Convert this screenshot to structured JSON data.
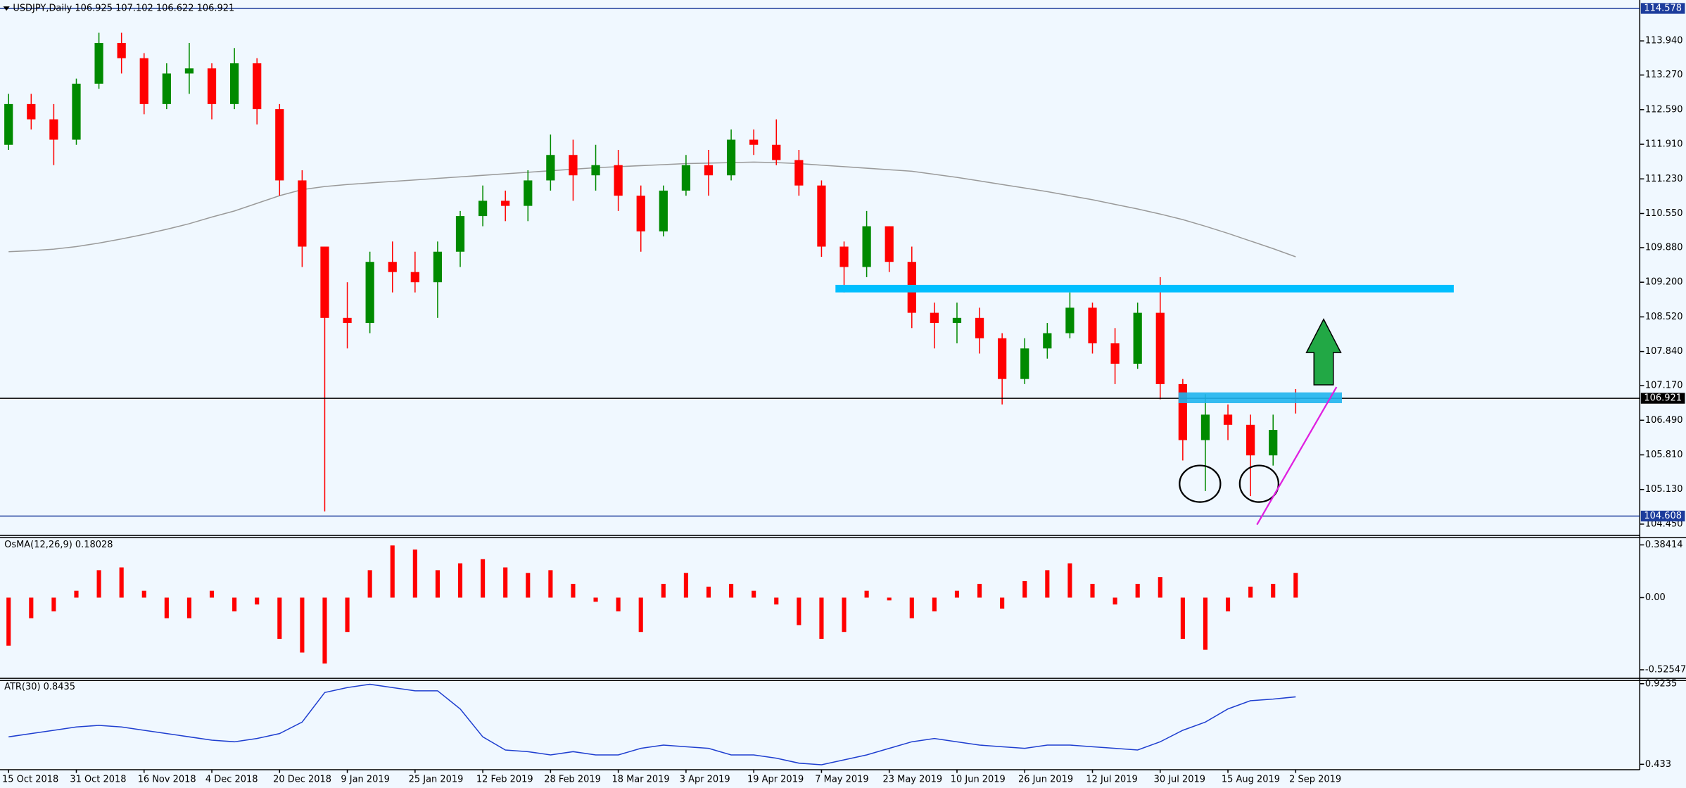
{
  "chart_data": [
    {
      "type": "candlestick",
      "title": "USDJPY,Daily  106.925 107.102 106.622 106.921",
      "categories": [
        "15 Oct 2018",
        null,
        null,
        "31 Oct 2018",
        null,
        null,
        "16 Nov 2018",
        null,
        null,
        "4 Dec 2018",
        null,
        null,
        "20 Dec 2018",
        null,
        null,
        "9 Jan 2019",
        null,
        null,
        "25 Jan 2019",
        null,
        null,
        "12 Feb 2019",
        null,
        null,
        "28 Feb 2019",
        null,
        null,
        "18 Mar 2019",
        null,
        null,
        "3 Apr 2019",
        null,
        null,
        "19 Apr 2019",
        null,
        null,
        "7 May 2019",
        null,
        null,
        "23 May 2019",
        null,
        null,
        "10 Jun 2019",
        null,
        null,
        "26 Jun 2019",
        null,
        null,
        "12 Jul 2019",
        null,
        null,
        "30 Jul 2019",
        null,
        null,
        "15 Aug 2019",
        null,
        null,
        "2 Sep 2019"
      ],
      "open": [
        111.9,
        112.7,
        112.4,
        112.0,
        113.1,
        113.9,
        113.6,
        112.7,
        113.3,
        113.4,
        112.7,
        113.5,
        112.6,
        111.2,
        109.9,
        108.5,
        108.4,
        109.6,
        109.4,
        109.2,
        109.8,
        110.5,
        110.8,
        110.7,
        111.2,
        111.7,
        111.3,
        111.5,
        110.9,
        110.2,
        111.0,
        111.5,
        111.3,
        112.0,
        111.9,
        111.6,
        111.1,
        109.9,
        109.5,
        110.3,
        109.6,
        108.6,
        108.4,
        108.5,
        108.1,
        107.3,
        107.9,
        108.2,
        108.7,
        108.0,
        107.6,
        108.6,
        107.2,
        106.1,
        106.6,
        106.4,
        105.8,
        106.925
      ],
      "high": [
        112.9,
        112.9,
        112.7,
        113.2,
        114.1,
        114.1,
        113.7,
        113.5,
        113.9,
        113.5,
        113.8,
        113.6,
        112.7,
        111.4,
        109.9,
        109.2,
        109.8,
        110.0,
        109.8,
        110.0,
        110.6,
        111.1,
        111.0,
        111.4,
        112.1,
        112.0,
        111.9,
        111.8,
        111.1,
        111.1,
        111.7,
        111.8,
        112.2,
        112.2,
        112.4,
        111.8,
        111.2,
        110.0,
        110.6,
        110.3,
        109.9,
        108.8,
        108.8,
        108.7,
        108.2,
        108.1,
        108.4,
        109.0,
        108.8,
        108.3,
        108.8,
        109.3,
        107.3,
        107.0,
        106.8,
        106.6,
        106.6,
        107.102
      ],
      "low": [
        111.8,
        112.2,
        111.5,
        111.9,
        113.0,
        113.3,
        112.5,
        112.6,
        112.9,
        112.4,
        112.6,
        112.3,
        110.9,
        109.5,
        104.7,
        107.9,
        108.2,
        109.0,
        109.0,
        108.5,
        109.5,
        110.3,
        110.4,
        110.4,
        111.0,
        110.8,
        111.0,
        110.6,
        109.8,
        110.1,
        110.9,
        110.9,
        111.2,
        111.7,
        111.5,
        110.9,
        109.7,
        109.0,
        109.3,
        109.4,
        108.3,
        107.9,
        108.0,
        107.8,
        106.8,
        107.2,
        107.7,
        108.1,
        107.8,
        107.2,
        107.5,
        106.9,
        105.7,
        105.1,
        106.1,
        105.0,
        105.6,
        106.622
      ],
      "close": [
        112.7,
        112.4,
        112.0,
        113.1,
        113.9,
        113.6,
        112.7,
        113.3,
        113.4,
        112.7,
        113.5,
        112.6,
        111.2,
        109.9,
        108.5,
        108.4,
        109.6,
        109.4,
        109.2,
        109.8,
        110.5,
        110.8,
        110.7,
        111.2,
        111.7,
        111.3,
        111.5,
        110.9,
        110.2,
        111.0,
        111.5,
        111.3,
        112.0,
        111.9,
        111.6,
        111.1,
        109.9,
        109.5,
        110.3,
        109.6,
        108.6,
        108.4,
        108.5,
        108.1,
        107.3,
        107.9,
        108.2,
        108.7,
        108.0,
        107.6,
        108.6,
        107.2,
        106.1,
        106.6,
        106.4,
        105.8,
        106.3,
        106.921
      ],
      "up_color": "#008a00",
      "down_color": "#ff0000",
      "ma_values": [
        109.8,
        109.82,
        109.85,
        109.9,
        109.97,
        110.05,
        110.14,
        110.24,
        110.35,
        110.48,
        110.6,
        110.75,
        110.9,
        111.02,
        111.08,
        111.12,
        111.15,
        111.18,
        111.21,
        111.24,
        111.27,
        111.3,
        111.33,
        111.36,
        111.39,
        111.42,
        111.45,
        111.47,
        111.49,
        111.51,
        111.53,
        111.54,
        111.55,
        111.56,
        111.55,
        111.53,
        111.5,
        111.47,
        111.44,
        111.41,
        111.38,
        111.32,
        111.26,
        111.19,
        111.12,
        111.05,
        110.98,
        110.9,
        110.82,
        110.73,
        110.64,
        110.54,
        110.43,
        110.3,
        110.16,
        110.01,
        109.86,
        109.7
      ],
      "ma_color": "#9a9a9a",
      "ylim": [
        104.25,
        114.68
      ],
      "yticks": [
        {
          "value": 113.94,
          "label": "113.940"
        },
        {
          "value": 113.27,
          "label": "113.270"
        },
        {
          "value": 112.59,
          "label": "112.590"
        },
        {
          "value": 111.91,
          "label": "111.910"
        },
        {
          "value": 111.23,
          "label": "111.230"
        },
        {
          "value": 110.55,
          "label": "110.550"
        },
        {
          "value": 109.88,
          "label": "109.880"
        },
        {
          "value": 109.2,
          "label": "109.200"
        },
        {
          "value": 108.52,
          "label": "108.520"
        },
        {
          "value": 107.84,
          "label": "107.840"
        },
        {
          "value": 107.17,
          "label": "107.170"
        },
        {
          "value": 106.49,
          "label": "106.490"
        },
        {
          "value": 105.81,
          "label": "105.810"
        },
        {
          "value": 105.13,
          "label": "105.130"
        },
        {
          "value": 104.45,
          "label": "104.450"
        }
      ],
      "price_lines": [
        {
          "value": 114.578,
          "color": "#1c3c9c"
        },
        {
          "value": 104.608,
          "color": "#1c3c9c"
        },
        {
          "value": 106.921,
          "color": "#000000"
        }
      ]
    },
    {
      "type": "bar",
      "title": "OsMA(12,26,9) 0.18028",
      "color": "#ff0000",
      "values": [
        -0.35,
        -0.15,
        -0.1,
        0.05,
        0.2,
        0.22,
        0.05,
        -0.15,
        -0.15,
        0.05,
        -0.1,
        -0.05,
        -0.3,
        -0.4,
        -0.48,
        -0.25,
        0.2,
        0.38,
        0.35,
        0.2,
        0.25,
        0.28,
        0.22,
        0.18,
        0.2,
        0.1,
        -0.03,
        -0.1,
        -0.25,
        0.1,
        0.18,
        0.08,
        0.1,
        0.05,
        -0.05,
        -0.2,
        -0.3,
        -0.25,
        0.05,
        -0.02,
        -0.15,
        -0.1,
        0.05,
        0.1,
        -0.08,
        0.12,
        0.2,
        0.25,
        0.1,
        -0.05,
        0.1,
        0.15,
        -0.3,
        -0.38,
        -0.1,
        0.08,
        0.1,
        0.18028
      ],
      "ylim": [
        -0.58,
        0.43
      ],
      "yticks": [
        0.38414,
        {
          "value": 0,
          "label": "0.00"
        },
        -0.52547
      ]
    },
    {
      "type": "line",
      "title": "ATR(30) 0.8435",
      "color": "#1f3fd0",
      "values": [
        0.6,
        0.62,
        0.64,
        0.66,
        0.67,
        0.66,
        0.64,
        0.62,
        0.6,
        0.58,
        0.57,
        0.59,
        0.62,
        0.69,
        0.87,
        0.9,
        0.92,
        0.9,
        0.88,
        0.88,
        0.77,
        0.6,
        0.52,
        0.51,
        0.49,
        0.51,
        0.49,
        0.49,
        0.53,
        0.55,
        0.54,
        0.53,
        0.49,
        0.49,
        0.47,
        0.44,
        0.43,
        0.46,
        0.49,
        0.53,
        0.57,
        0.59,
        0.57,
        0.55,
        0.54,
        0.53,
        0.55,
        0.55,
        0.54,
        0.53,
        0.52,
        0.57,
        0.64,
        0.69,
        0.77,
        0.82,
        0.83,
        0.8435
      ],
      "ylim": [
        0.4,
        0.943
      ],
      "yticks": [
        0.9235,
        0.433
      ]
    }
  ]
}
